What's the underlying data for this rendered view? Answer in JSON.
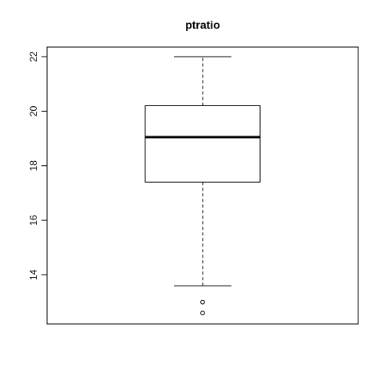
{
  "chart_data": {
    "type": "boxplot",
    "title": "ptratio",
    "xlabel": "",
    "ylabel": "",
    "ylim": [
      12.2,
      22.35
    ],
    "y_ticks": [
      14,
      16,
      18,
      20,
      22
    ],
    "y_tick_labels": [
      "14",
      "16",
      "18",
      "20",
      "22"
    ],
    "grid": false,
    "box": {
      "lower_whisker": 13.6,
      "q1": 17.4,
      "median": 19.05,
      "q3": 20.2,
      "upper_whisker": 22.0,
      "outliers": [
        13.0,
        12.6
      ]
    },
    "colors": {
      "stroke": "#000000",
      "background": "#ffffff"
    }
  }
}
